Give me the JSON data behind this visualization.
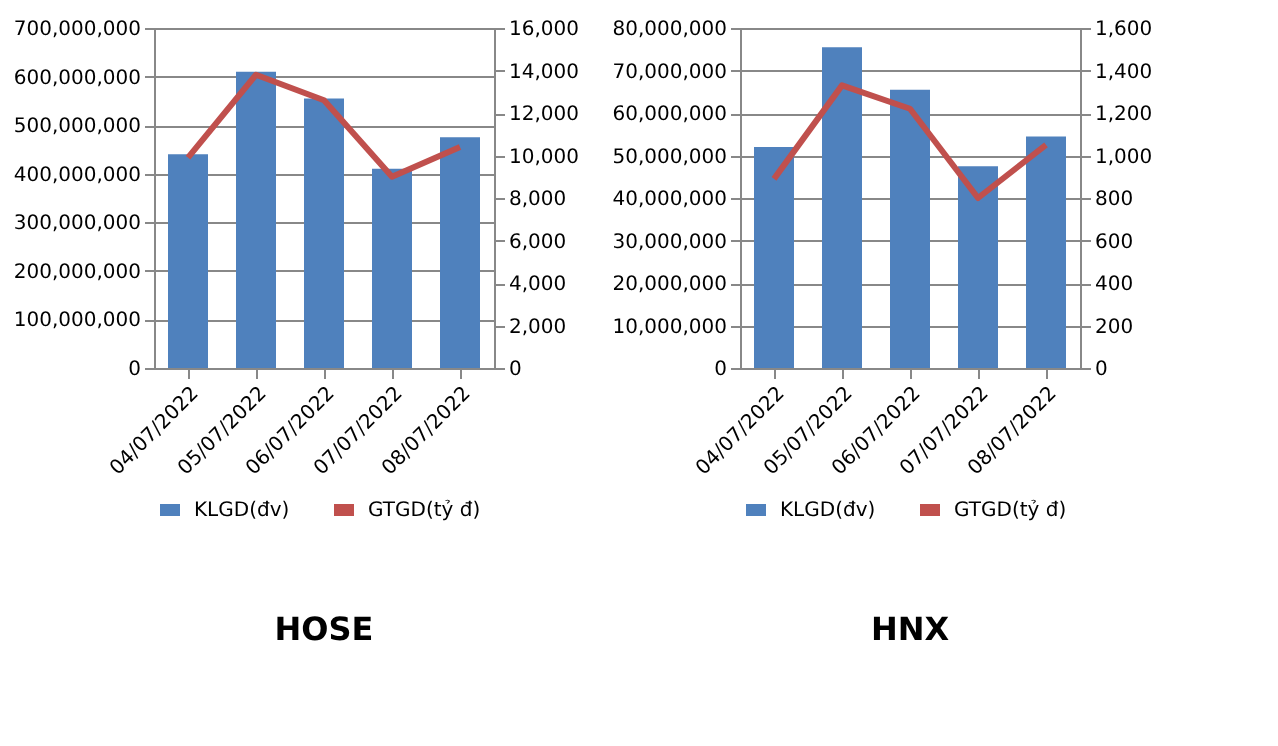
{
  "chart_data": [
    {
      "type": "bar",
      "title": "HOSE",
      "categories": [
        "04/07/2022",
        "05/07/2022",
        "06/07/2022",
        "07/07/2022",
        "08/07/2022"
      ],
      "series": [
        {
          "name": "KLGD(đv)",
          "color": "#4f81bd",
          "values": [
            440000000,
            610000000,
            555000000,
            410000000,
            475000000
          ]
        },
        {
          "name": "GTGD(tỷ  đ)",
          "type": "line",
          "axis": "y2",
          "color": "#c0504d",
          "values": [
            9900,
            13800,
            12600,
            9000,
            10400
          ]
        }
      ],
      "ylim": [
        0,
        700000000
      ],
      "yticks": [
        0,
        {
          "value": 100000000,
          "label": "100,000,000"
        },
        {
          "value": 200000000,
          "label": "200,000,000"
        },
        {
          "value": 300000000,
          "label": "300,000,000"
        },
        {
          "value": 400000000,
          "label": "400,000,000"
        },
        {
          "value": 500000000,
          "label": "500,000,000"
        },
        {
          "value": 600000000,
          "label": "600,000,000"
        },
        {
          "value": 700000000,
          "label": "700,000,000"
        }
      ],
      "y2lim": [
        0,
        16000
      ],
      "y2ticks": [
        0,
        {
          "value": 2000,
          "label": "2,000"
        },
        {
          "value": 4000,
          "label": "4,000"
        },
        {
          "value": 6000,
          "label": "6,000"
        },
        {
          "value": 8000,
          "label": "8,000"
        },
        {
          "value": 10000,
          "label": "10,000"
        },
        {
          "value": 12000,
          "label": "12,000"
        },
        {
          "value": 14000,
          "label": "14,000"
        },
        {
          "value": 16000,
          "label": "16,000"
        }
      ],
      "grid": "y",
      "legend": "bottom"
    },
    {
      "type": "bar",
      "title": "HNX",
      "categories": [
        "04/07/2022",
        "05/07/2022",
        "06/07/2022",
        "07/07/2022",
        "08/07/2022"
      ],
      "series": [
        {
          "name": "KLGD(đv)",
          "color": "#4f81bd",
          "values": [
            52000000,
            75500000,
            65500000,
            47500000,
            54500000
          ]
        },
        {
          "name": "GTGD(tỷ  đ)",
          "type": "line",
          "axis": "y2",
          "color": "#c0504d",
          "values": [
            890,
            1330,
            1220,
            800,
            1050
          ]
        }
      ],
      "ylim": [
        0,
        80000000
      ],
      "yticks": [
        0,
        {
          "value": 10000000,
          "label": "10,000,000"
        },
        {
          "value": 20000000,
          "label": "20,000,000"
        },
        {
          "value": 30000000,
          "label": "30,000,000"
        },
        {
          "value": 40000000,
          "label": "40,000,000"
        },
        {
          "value": 50000000,
          "label": "50,000,000"
        },
        {
          "value": 60000000,
          "label": "60,000,000"
        },
        {
          "value": 70000000,
          "label": "70,000,000"
        },
        {
          "value": 80000000,
          "label": "80,000,000"
        }
      ],
      "y2lim": [
        0,
        1600
      ],
      "y2ticks": [
        0,
        200,
        400,
        600,
        800,
        {
          "value": 1000,
          "label": "1,000"
        },
        {
          "value": 1200,
          "label": "1,200"
        },
        {
          "value": 1400,
          "label": "1,400"
        },
        {
          "value": 1600,
          "label": "1,600"
        }
      ],
      "grid": "y",
      "legend": "bottom"
    }
  ]
}
